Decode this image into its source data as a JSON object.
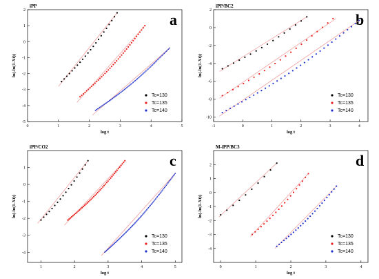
{
  "chart_data": [
    {
      "type": "scatter",
      "title": "iPP",
      "panel_letter": "a",
      "xlabel": "log t",
      "ylabel": "ln(-ln(1-Xt))",
      "xlim": [
        0,
        5
      ],
      "ylim": [
        -5,
        2
      ],
      "xticks": [
        "0",
        "1",
        "2",
        "3",
        "4",
        "5"
      ],
      "yticks": [
        "-5",
        "-4",
        "-3",
        "-2",
        "-1",
        "0",
        "1",
        "2"
      ],
      "legend_position": "bottom-right",
      "series": [
        {
          "name": "Tc=130",
          "color": "#000000",
          "x_range": [
            1.1,
            2.9
          ],
          "y_range": [
            -2.5,
            1.8
          ],
          "n_points": 22,
          "fit": [
            [
              1.0,
              -2.8
            ],
            [
              2.9,
              1.8
            ]
          ]
        },
        {
          "name": "Tc=135",
          "color": "#e8201e",
          "x_range": [
            1.7,
            3.8
          ],
          "y_range": [
            -3.45,
            1.0
          ],
          "n_points": 40,
          "fit": [
            [
              1.6,
              -3.8
            ],
            [
              3.8,
              1.0
            ]
          ]
        },
        {
          "name": "Tc=140",
          "color": "#2233cc",
          "x_range": [
            2.2,
            4.6
          ],
          "y_range": [
            -4.3,
            -0.4
          ],
          "n_points": 70,
          "fit": [
            [
              2.1,
              -4.6
            ],
            [
              4.6,
              -0.4
            ]
          ]
        }
      ]
    },
    {
      "type": "scatter",
      "title": "iPP/BC2",
      "panel_letter": "b",
      "xlabel": "log t",
      "ylabel": "ln(-ln(1-Xt))",
      "xlim": [
        -1,
        4.3
      ],
      "ylim": [
        -10.5,
        2
      ],
      "xticks": [
        "-1",
        "0",
        "1",
        "2",
        "3",
        "4"
      ],
      "yticks": [
        "-10",
        "-8",
        "-6",
        "-4",
        "-2",
        "0",
        "2"
      ],
      "legend_position": "bottom-right",
      "series": [
        {
          "name": "Tc=130",
          "color": "#000000",
          "x_range": [
            -0.7,
            2.2
          ],
          "y_range": [
            -4.6,
            1.2
          ],
          "n_points": 16,
          "fit": [
            [
              -0.8,
              -4.9
            ],
            [
              2.2,
              1.2
            ]
          ]
        },
        {
          "name": "Tc=135",
          "color": "#e8201e",
          "x_range": [
            -0.7,
            3.1
          ],
          "y_range": [
            -7.6,
            1.0
          ],
          "n_points": 22,
          "fit": [
            [
              -0.8,
              -7.9
            ],
            [
              3.2,
              1.0
            ]
          ]
        },
        {
          "name": "Tc=140",
          "color": "#2233cc",
          "x_range": [
            -0.7,
            4.0
          ],
          "y_range": [
            -9.5,
            0.8
          ],
          "n_points": 36,
          "fit": [
            [
              -0.8,
              -9.9
            ],
            [
              4.0,
              0.8
            ]
          ]
        }
      ]
    },
    {
      "type": "scatter",
      "title": "iPP/CO2",
      "panel_letter": "c",
      "xlabel": "log t",
      "ylabel": "ln(-ln(1-Xt))",
      "xlim": [
        0.6,
        5.2
      ],
      "ylim": [
        -4.6,
        2
      ],
      "xticks": [
        "1",
        "2",
        "3",
        "4",
        "5"
      ],
      "yticks": [
        "-4",
        "-3",
        "-2",
        "-1",
        "0",
        "1"
      ],
      "legend_position": "bottom-right",
      "series": [
        {
          "name": "Tc=130",
          "color": "#000000",
          "x_range": [
            1.0,
            2.4
          ],
          "y_range": [
            -2.1,
            1.4
          ],
          "n_points": 18,
          "fit": [
            [
              0.9,
              -2.3
            ],
            [
              2.4,
              1.4
            ]
          ]
        },
        {
          "name": "Tc=135",
          "color": "#e8201e",
          "x_range": [
            1.8,
            3.5
          ],
          "y_range": [
            -2.1,
            1.4
          ],
          "n_points": 45,
          "fit": [
            [
              1.7,
              -2.4
            ],
            [
              3.5,
              1.4
            ]
          ]
        },
        {
          "name": "Tc=140",
          "color": "#2233cc",
          "x_range": [
            2.9,
            5.0
          ],
          "y_range": [
            -4.0,
            0.65
          ],
          "n_points": 80,
          "fit": [
            [
              2.8,
              -4.2
            ],
            [
              5.0,
              0.65
            ]
          ]
        }
      ]
    },
    {
      "type": "scatter",
      "title": "M-iPP/BC3",
      "panel_letter": "d",
      "xlabel": "log t",
      "ylabel": "ln(-ln(1-Xt))",
      "xlim": [
        -0.2,
        4.2
      ],
      "ylim": [
        -5,
        3
      ],
      "xticks": [
        "0",
        "1",
        "2",
        "3",
        "4"
      ],
      "yticks": [
        "-4",
        "-3",
        "-2",
        "-1",
        "0",
        "1",
        "2"
      ],
      "legend_position": "bottom-right",
      "series": [
        {
          "name": "Tc=130",
          "color": "#000000",
          "x_range": [
            0.0,
            1.6
          ],
          "y_range": [
            -1.6,
            2.1
          ],
          "n_points": 10,
          "fit": [
            [
              -0.05,
              -1.75
            ],
            [
              1.6,
              2.1
            ]
          ]
        },
        {
          "name": "Tc=135",
          "color": "#e8201e",
          "x_range": [
            0.9,
            2.5
          ],
          "y_range": [
            -3.0,
            1.35
          ],
          "n_points": 20,
          "fit": [
            [
              0.85,
              -3.15
            ],
            [
              2.5,
              1.35
            ]
          ]
        },
        {
          "name": "Tc=140",
          "color": "#2233cc",
          "x_range": [
            1.6,
            3.3
          ],
          "y_range": [
            -3.85,
            0.45
          ],
          "n_points": 26,
          "fit": [
            [
              1.55,
              -4.0
            ],
            [
              3.3,
              0.45
            ]
          ]
        }
      ]
    }
  ]
}
